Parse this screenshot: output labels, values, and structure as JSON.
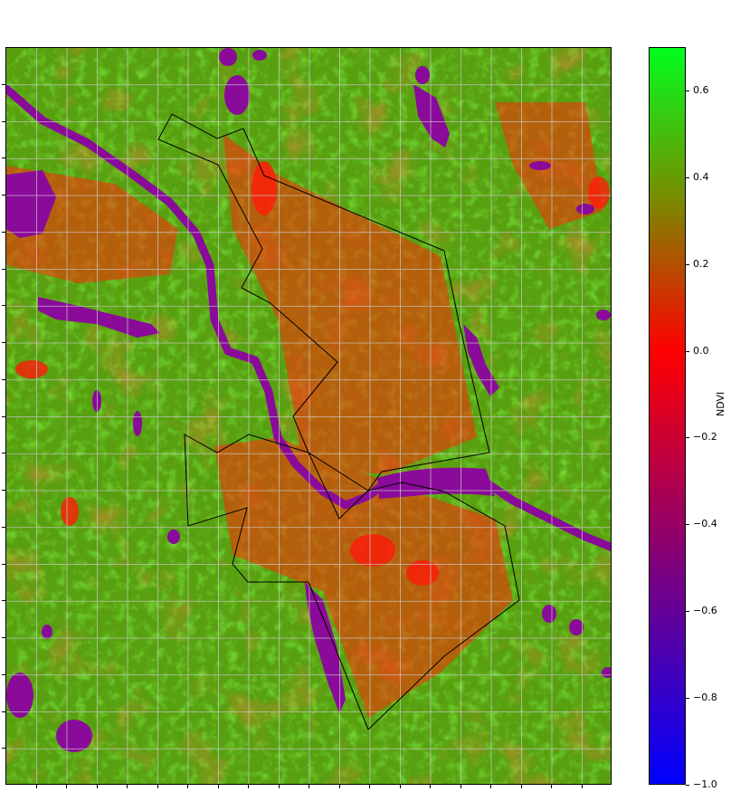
{
  "colorbar": {
    "label": "NDVI",
    "min": -1.0,
    "max": 0.7,
    "ticks": [
      "0.6",
      "0.4",
      "0.2",
      "0.0",
      "−0.2",
      "−0.4",
      "−0.6",
      "−0.8",
      "−1.0"
    ],
    "tick_values": [
      0.6,
      0.4,
      0.2,
      0.0,
      -0.2,
      -0.4,
      -0.6,
      -0.8,
      -1.0
    ],
    "colors": {
      "high": "#00ff1e",
      "mid": "#ff0000",
      "low": "#0000ff"
    }
  },
  "map": {
    "grid": "on",
    "grid_color": "#c8c8c8",
    "background_color": "#55a010",
    "boundary_color": "#000000",
    "water_color": "#8a0a9a",
    "low_ndvi_color": "#ff2a0a",
    "high_ndvi_color": "#22e010"
  }
}
